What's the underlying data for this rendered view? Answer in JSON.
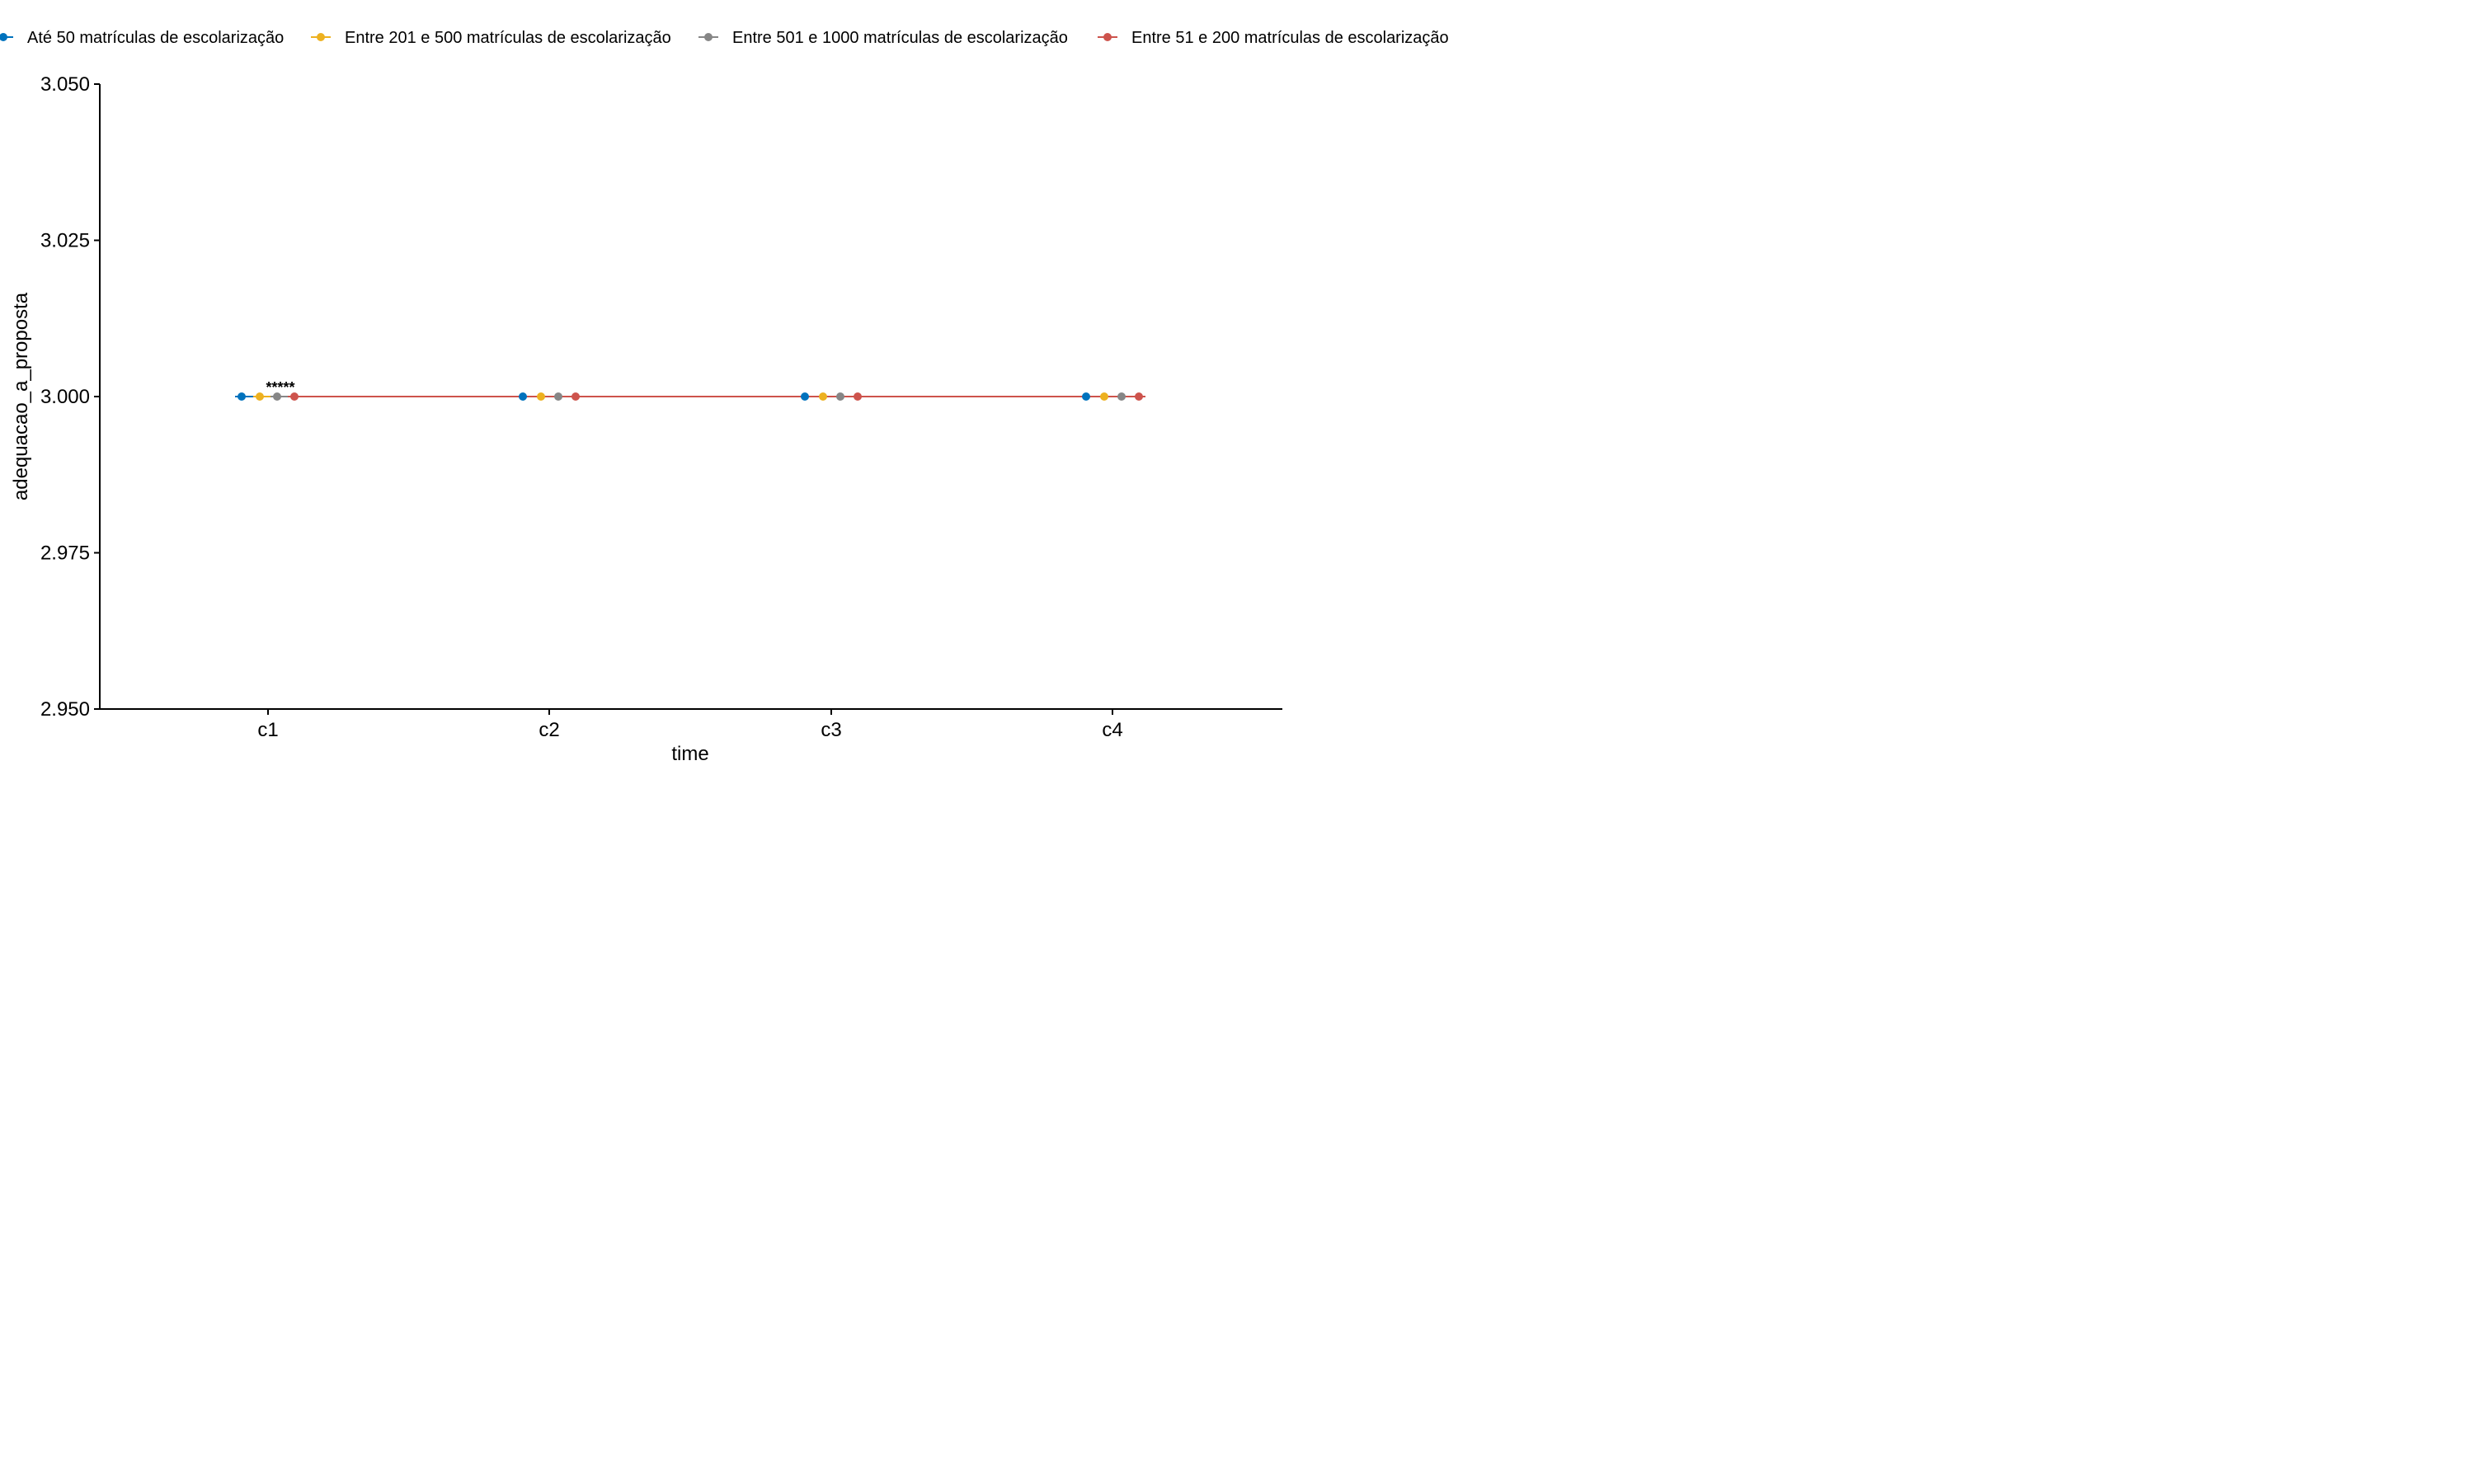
{
  "chart_data": {
    "type": "line",
    "xlabel": "time",
    "ylabel": "adequacao_a_proposta",
    "categories": [
      "c1",
      "c2",
      "c3",
      "c4"
    ],
    "ylim": [
      2.95,
      3.05
    ],
    "yticks": [
      {
        "value": 2.95,
        "label": "2.950"
      },
      {
        "value": 2.975,
        "label": "2.975"
      },
      {
        "value": 3.0,
        "label": "3.000"
      },
      {
        "value": 3.025,
        "label": "3.025"
      },
      {
        "value": 3.05,
        "label": "3.050"
      }
    ],
    "legend_position": "top",
    "grid": false,
    "series": [
      {
        "name": "Até 50 matrículas de escolarização",
        "color": "#0072BD",
        "values": [
          3.0,
          3.0,
          3.0,
          3.0
        ]
      },
      {
        "name": "Entre 201 e 500 matrículas de escolarização",
        "color": "#EDB120",
        "values": [
          3.0,
          3.0,
          3.0,
          3.0
        ]
      },
      {
        "name": "Entre 501 e 1000 matrículas de escolarização",
        "color": "#868686",
        "values": [
          3.0,
          3.0,
          3.0,
          3.0
        ]
      },
      {
        "name": "Entre 51 e 200 matrículas de escolarização",
        "color": "#CD534C",
        "values": [
          3.0,
          3.0,
          3.0,
          3.0
        ]
      }
    ],
    "annotations": [
      {
        "text": "*****",
        "category": "c1",
        "y": 3.0
      }
    ]
  }
}
